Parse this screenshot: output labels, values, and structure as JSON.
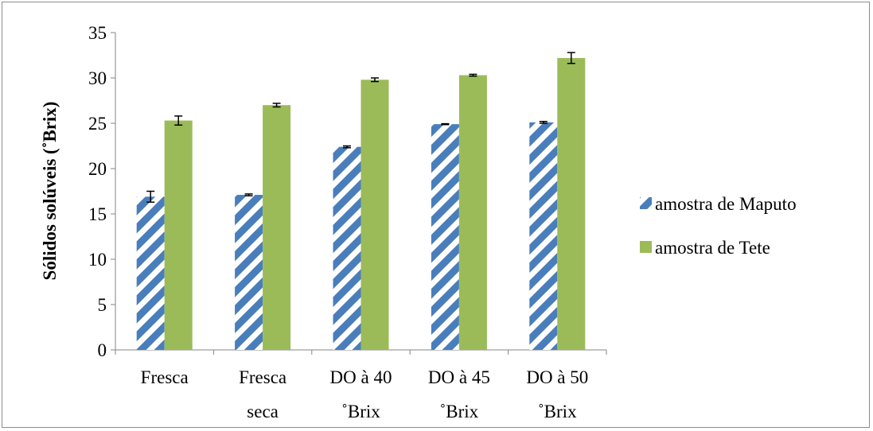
{
  "chart_data": {
    "type": "bar",
    "title": "",
    "xlabel": "",
    "ylabel": "Sólidos solúveis (˚Brix)",
    "ylim": [
      0,
      35
    ],
    "yticks": [
      0,
      5,
      10,
      15,
      20,
      25,
      30,
      35
    ],
    "grid": false,
    "legend_position": "right",
    "categories": [
      [
        "Fresca"
      ],
      [
        "Fresca",
        "seca"
      ],
      [
        "DO à 40",
        "˚Brix"
      ],
      [
        "DO à 45",
        "˚Brix"
      ],
      [
        "DO à 50",
        "˚Brix"
      ]
    ],
    "series": [
      {
        "name": "amostra de Maputo",
        "color": "#4a7ebb",
        "pattern": "diagonal-stripes",
        "values": [
          16.9,
          17.1,
          22.4,
          24.9,
          25.1
        ],
        "errors": [
          0.6,
          0.1,
          0.1,
          0.05,
          0.1
        ]
      },
      {
        "name": "amostra de Tete",
        "color": "#9bbb59",
        "pattern": "solid",
        "values": [
          25.3,
          27.0,
          29.8,
          30.3,
          32.2
        ],
        "errors": [
          0.5,
          0.2,
          0.2,
          0.1,
          0.6
        ]
      }
    ]
  }
}
